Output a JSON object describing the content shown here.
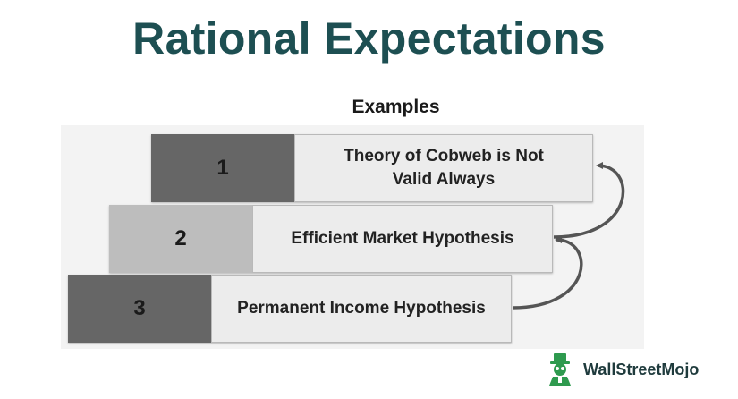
{
  "title": "Rational Expectations",
  "subtitle": "Examples",
  "steps": [
    {
      "number": "1",
      "label": "Theory of Cobweb is Not Valid Always"
    },
    {
      "number": "2",
      "label": "Efficient Market Hypothesis"
    },
    {
      "number": "3",
      "label": "Permanent Income Hypothesis"
    }
  ],
  "colors": {
    "title": "#1d4f52",
    "dark_block": "#666666",
    "light_block": "#bdbdbd",
    "label_fill": "#ececec",
    "arrow": "#555555",
    "logo_green": "#2e9a4e"
  },
  "logo": {
    "text": "WallStreetMojo",
    "icon": "mascot-icon"
  }
}
